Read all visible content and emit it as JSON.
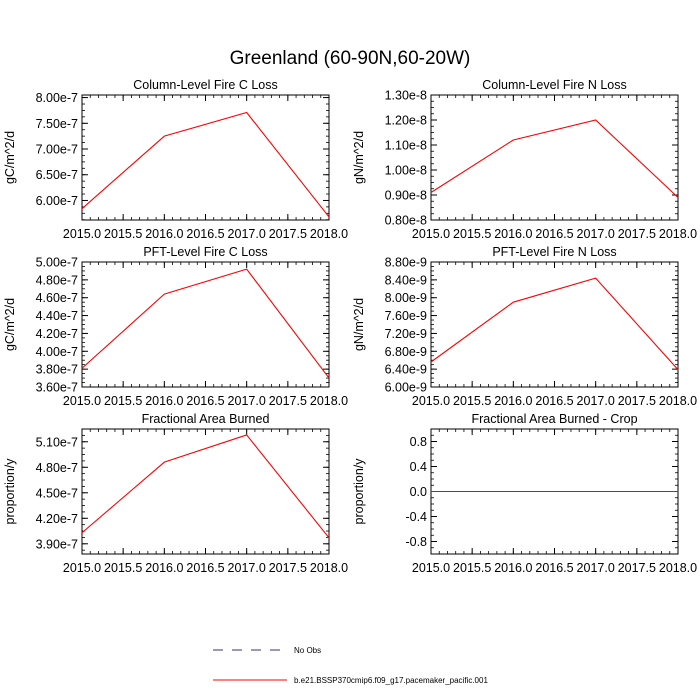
{
  "title": "Greenland (60-90N,60-20W)",
  "colors": {
    "series": "#ff0000",
    "obs": "#3a2f7a",
    "axis": "#000000"
  },
  "chart_data": [
    {
      "type": "line",
      "title": "Column-Level Fire C Loss",
      "ylabel": "gC/m^2/d",
      "xlim": [
        2015.0,
        2018.0
      ],
      "ylim": [
        5.62e-07,
        8.05e-07
      ],
      "yticks": [
        6e-07,
        6.5e-07,
        7e-07,
        7.5e-07,
        8e-07
      ],
      "yticklabels": [
        "6.00e-7",
        "6.50e-7",
        "7.00e-7",
        "7.50e-7",
        "8.00e-7"
      ],
      "x": [
        2015.0,
        2016.0,
        2017.0,
        2018.0
      ],
      "series": [
        {
          "values": [
            5.84e-07,
            7.25e-07,
            7.71e-07,
            5.68e-07
          ]
        }
      ]
    },
    {
      "type": "line",
      "title": "Column-Level Fire N Loss",
      "ylabel": "gN/m^2/d",
      "xlim": [
        2015.0,
        2018.0
      ],
      "ylim": [
        8e-09,
        1.3e-08
      ],
      "yticks": [
        8e-09,
        9e-09,
        1e-08,
        1.1e-08,
        1.2e-08,
        1.3e-08
      ],
      "yticklabels": [
        "0.80e-8",
        "0.90e-8",
        "1.00e-8",
        "1.10e-8",
        "1.20e-8",
        "1.30e-8"
      ],
      "x": [
        2015.0,
        2016.0,
        2017.0,
        2018.0
      ],
      "series": [
        {
          "values": [
            9.1e-09,
            1.12e-08,
            1.2e-08,
            8.9e-09
          ]
        }
      ]
    },
    {
      "type": "line",
      "title": "PFT-Level Fire C Loss",
      "ylabel": "gC/m^2/d",
      "xlim": [
        2015.0,
        2018.0
      ],
      "ylim": [
        3.6e-07,
        5e-07
      ],
      "yticks": [
        3.6e-07,
        3.8e-07,
        4e-07,
        4.2e-07,
        4.4e-07,
        4.6e-07,
        4.8e-07,
        5e-07
      ],
      "yticklabels": [
        "3.60e-7",
        "3.80e-7",
        "4.00e-7",
        "4.20e-7",
        "4.40e-7",
        "4.60e-7",
        "4.80e-7",
        "5.00e-7"
      ],
      "x": [
        2015.0,
        2016.0,
        2017.0,
        2018.0
      ],
      "series": [
        {
          "values": [
            3.81e-07,
            4.64e-07,
            4.92e-07,
            3.7e-07
          ]
        }
      ]
    },
    {
      "type": "line",
      "title": "PFT-Level Fire N Loss",
      "ylabel": "gN/m^2/d",
      "xlim": [
        2015.0,
        2018.0
      ],
      "ylim": [
        6e-09,
        8.8e-09
      ],
      "yticks": [
        6e-09,
        6.4e-09,
        6.8e-09,
        7.2e-09,
        7.6e-09,
        8e-09,
        8.4e-09,
        8.8e-09
      ],
      "yticklabels": [
        "6.00e-9",
        "6.40e-9",
        "6.80e-9",
        "7.20e-9",
        "7.60e-9",
        "8.00e-9",
        "8.40e-9",
        "8.80e-9"
      ],
      "x": [
        2015.0,
        2016.0,
        2017.0,
        2018.0
      ],
      "series": [
        {
          "values": [
            6.56e-09,
            7.9e-09,
            8.44e-09,
            6.39e-09
          ]
        }
      ]
    },
    {
      "type": "line",
      "title": "Fractional Area Burned",
      "ylabel": "proportion/y",
      "xlim": [
        2015.0,
        2018.0
      ],
      "ylim": [
        3.78e-07,
        5.25e-07
      ],
      "yticks": [
        3.9e-07,
        4.2e-07,
        4.5e-07,
        4.8e-07,
        5.1e-07
      ],
      "yticklabels": [
        "3.90e-7",
        "4.20e-7",
        "4.50e-7",
        "4.80e-7",
        "5.10e-7"
      ],
      "x": [
        2015.0,
        2016.0,
        2017.0,
        2018.0
      ],
      "series": [
        {
          "values": [
            4.03e-07,
            4.86e-07,
            5.18e-07,
            3.97e-07
          ]
        }
      ]
    },
    {
      "type": "line",
      "title": "Fractional Area Burned - Crop",
      "ylabel": "proportion/y",
      "xlim": [
        2015.0,
        2018.0
      ],
      "ylim": [
        -1.0,
        1.0
      ],
      "yticks": [
        -0.8,
        -0.4,
        0.0,
        0.4,
        0.8
      ],
      "yticklabels": [
        "-0.8",
        "-0.4",
        "0.0",
        "0.4",
        "0.8"
      ],
      "x": [
        2015.0,
        2016.0,
        2017.0,
        2018.0
      ],
      "series": [
        {
          "values": [
            0.0,
            0.0,
            0.0,
            0.0
          ]
        }
      ]
    }
  ],
  "xticklabels": [
    "2015.0",
    "2015.5",
    "2016.0",
    "2016.5",
    "2017.0",
    "2017.5",
    "2018.0"
  ],
  "xticks": [
    2015.0,
    2015.5,
    2016.0,
    2016.5,
    2017.0,
    2017.5,
    2018.0
  ],
  "legend": {
    "entries": [
      {
        "label": "No Obs",
        "style": "dashed",
        "color": "#3a2f7a"
      },
      {
        "label": "b.e21.BSSP370cmip6.f09_g17.pacemaker_pacific.001",
        "style": "solid",
        "color": "#ff0000"
      }
    ]
  }
}
